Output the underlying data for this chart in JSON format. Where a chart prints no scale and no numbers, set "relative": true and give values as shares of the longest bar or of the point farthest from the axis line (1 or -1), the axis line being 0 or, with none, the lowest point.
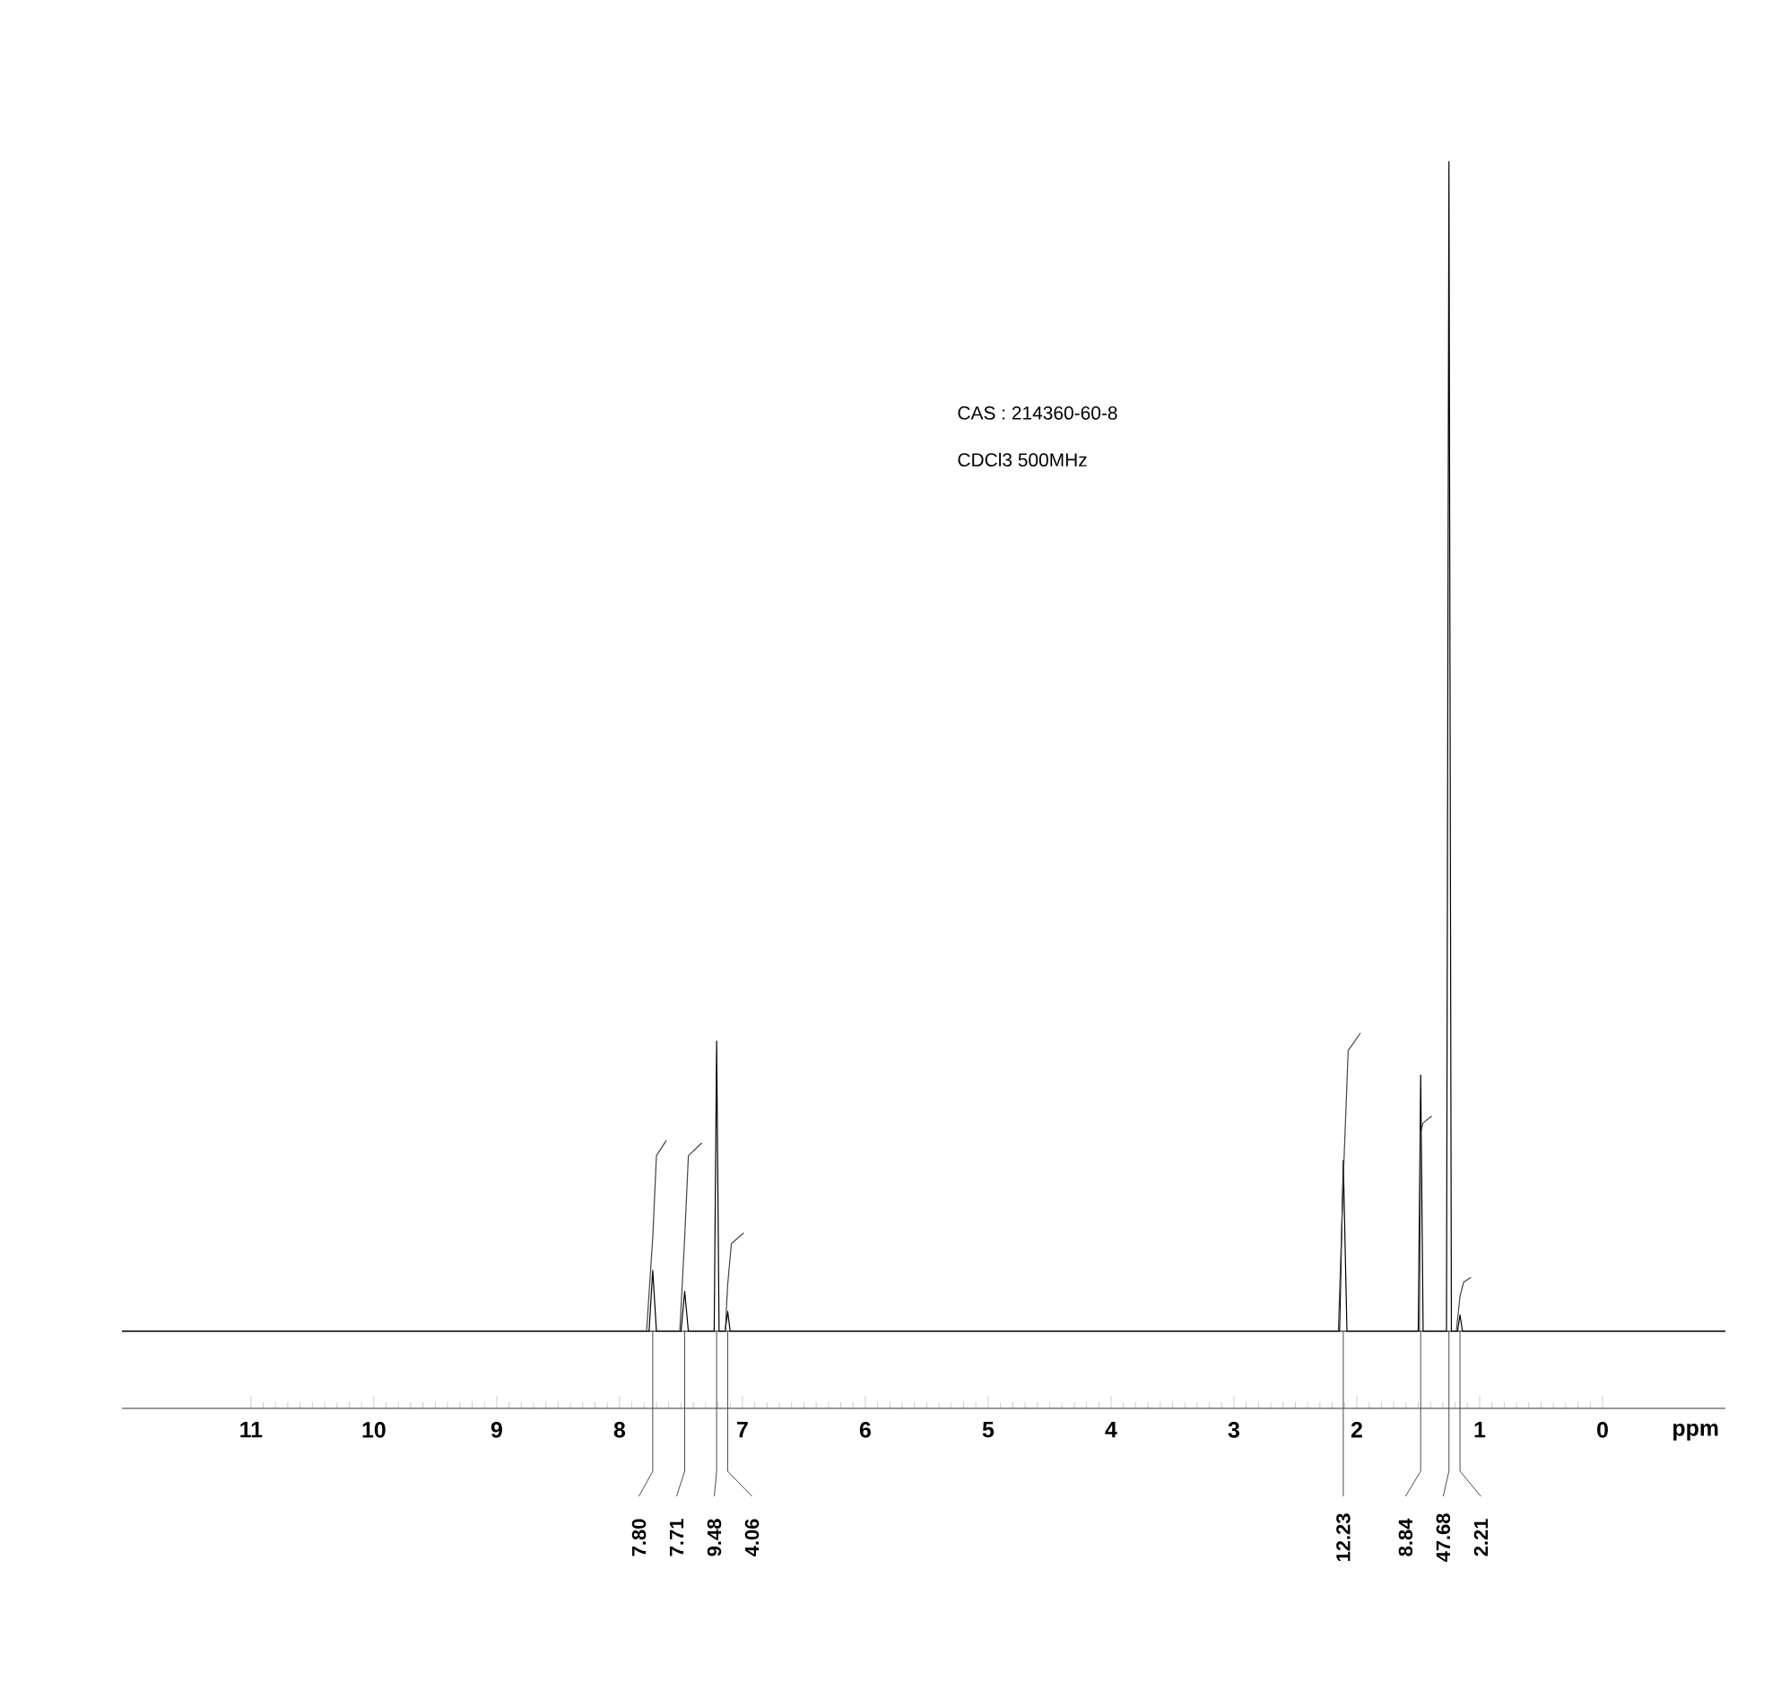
{
  "chart_data": {
    "type": "line",
    "relative": true,
    "xlabel": "ppm",
    "xlim": [
      12.05,
      -1.0
    ],
    "xticks": [
      0,
      1,
      2,
      3,
      4,
      5,
      6,
      7,
      8,
      9,
      10,
      11
    ],
    "tick_labels": "x",
    "grid": false,
    "marker": "none",
    "line_style": "solid",
    "series": [
      {
        "color": "#000000",
        "x": [
          12.05,
          7.76,
          7.73,
          7.7,
          7.5,
          7.47,
          7.44,
          7.23,
          7.21,
          7.19,
          7.14,
          7.12,
          7.1,
          2.14,
          2.11,
          2.08,
          1.5,
          1.48,
          1.46,
          1.27,
          1.25,
          1.23,
          1.18,
          1.16,
          1.14,
          -1.0
        ],
        "values": [
          0,
          0,
          0.052,
          0,
          0,
          0.034,
          0,
          0,
          0.248,
          0,
          0,
          0.017,
          0,
          0,
          0.146,
          0,
          0,
          0.219,
          0,
          0,
          1,
          0,
          0,
          0.014,
          0,
          0
        ]
      },
      {
        "color": "#444444",
        "x": [
          7.78,
          7.73,
          7.7,
          7.62,
          7.6,
          7.51,
          7.47,
          7.44,
          7.33,
          7.3,
          7.14,
          7.12,
          7.09,
          6.99,
          5,
          2.15,
          2.11,
          2.07,
          1.97,
          1.8,
          1.49,
          1.48,
          1.46,
          1.39,
          1.3,
          1.19,
          1.16,
          1.13,
          1.07
        ],
        "values": [
          0,
          0.08,
          0.15,
          0.163,
          null,
          0,
          0.08,
          0.15,
          0.161,
          null,
          0,
          0.04,
          0.075,
          0.084,
          null,
          0,
          0.13,
          0.24,
          0.255,
          null,
          0,
          0.17,
          0.178,
          0.184,
          null,
          0,
          0.03,
          0.042,
          0.046
        ]
      }
    ],
    "annotations": [
      "CAS : 214360-60-8",
      "CDCl3   500MHz",
      {
        "text": "7.80",
        "x": 7.73,
        "y": 0
      },
      {
        "text": "7.71",
        "x": 7.47,
        "y": 0
      },
      {
        "text": "9.48",
        "x": 7.21,
        "y": 0
      },
      {
        "text": "4.06",
        "x": 7.12,
        "y": 0
      },
      {
        "text": "12.23",
        "x": 2.11,
        "y": 0
      },
      {
        "text": "8.84",
        "x": 1.48,
        "y": 0
      },
      {
        "text": "47.68",
        "x": 1.25,
        "y": 0
      },
      {
        "text": "2.21",
        "x": 1.16,
        "y": 0
      }
    ]
  }
}
